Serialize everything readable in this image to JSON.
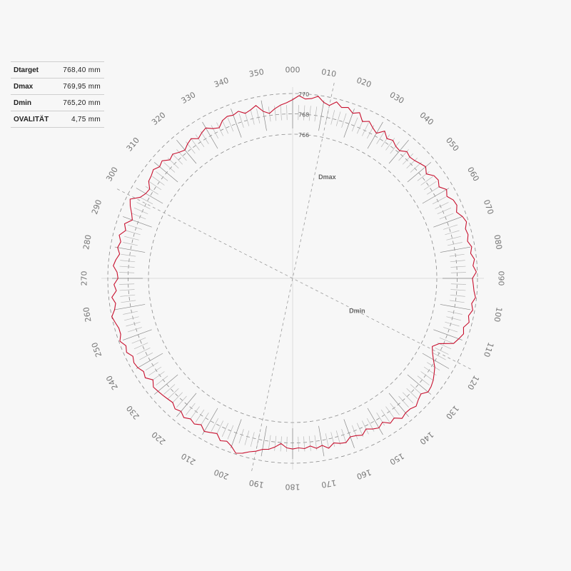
{
  "stats": [
    {
      "label": "Dtarget",
      "value": "768,40 mm"
    },
    {
      "label": "Dmax",
      "value": "769,95 mm"
    },
    {
      "label": "Dmin",
      "value": "765,20 mm"
    },
    {
      "label": "OVALITÄT",
      "value": "4,75 mm"
    }
  ],
  "colors": {
    "trace": "#c8102e",
    "grid": "#999999",
    "text": "#777777"
  },
  "chart_data": {
    "type": "polar-line",
    "angle_labels": [
      "000",
      "010",
      "020",
      "030",
      "040",
      "050",
      "060",
      "070",
      "080",
      "090",
      "100",
      "110",
      "120",
      "130",
      "140",
      "150",
      "160",
      "170",
      "180",
      "190",
      "200",
      "210",
      "220",
      "230",
      "240",
      "250",
      "260",
      "270",
      "280",
      "290",
      "300",
      "310",
      "320",
      "330",
      "340",
      "350"
    ],
    "rings": [
      {
        "value": 770,
        "label": "770"
      },
      {
        "value": 768,
        "label": "768"
      },
      {
        "value": 766,
        "label": "766"
      }
    ],
    "radial_range": [
      766,
      770
    ],
    "annotations": [
      {
        "label": "Dmax",
        "angle": 12
      },
      {
        "label": "Dmin",
        "angle": 117
      }
    ],
    "series": [
      {
        "angle_step": 2,
        "values": [
          769.4,
          769.8,
          769.5,
          769.6,
          769.9,
          769.4,
          769.2,
          769.7,
          769.3,
          769.5,
          769.1,
          769.4,
          768.7,
          769.0,
          768.6,
          768.3,
          768.9,
          768.4,
          768.6,
          768.3,
          768.2,
          768.6,
          768.4,
          768.5,
          768.7,
          768.9,
          768.5,
          769.0,
          769.1,
          768.8,
          769.3,
          769.0,
          769.4,
          769.5,
          769.2,
          769.6,
          769.8,
          769.5,
          769.6,
          769.4,
          769.7,
          769.5,
          769.8,
          769.6,
          769.9,
          769.5,
          769.6,
          769.7,
          769.9,
          769.6,
          769.8,
          769.5,
          769.7,
          769.3,
          769.5,
          769.2,
          768.9,
          767.6,
          767.1,
          767.4,
          767.8,
          768.3,
          768.6,
          768.9,
          769.1,
          769.2,
          768.8,
          769.0,
          769.3,
          769.1,
          769.1,
          769.3,
          768.8,
          769.0,
          768.5,
          768.8,
          768.6,
          768.3,
          768.7,
          768.5,
          768.4,
          768.8,
          768.7,
          768.5,
          768.9,
          768.5,
          768.7,
          768.4,
          768.6,
          768.5,
          768.6,
          768.5,
          768.1,
          768.5,
          768.8,
          768.9,
          769.2,
          769.4,
          769.7,
          769.9,
          769.4,
          769.1,
          769.3,
          768.8,
          769.0,
          769.2,
          768.8,
          769.1,
          768.9,
          769.2,
          768.9,
          769.1,
          768.8,
          768.9,
          769.0,
          769.1,
          769.2,
          768.8,
          769.3,
          769.1,
          769.4,
          769.5,
          769.3,
          769.7,
          769.5,
          769.9,
          769.6,
          769.6,
          769.8,
          770.0,
          769.6,
          769.4,
          769.7,
          769.2,
          769.4,
          769.0,
          769.1,
          769.5,
          769.3,
          769.0,
          769.3,
          769.1,
          769.4,
          768.9,
          769.2,
          768.6,
          768.9,
          769.3,
          769.6,
          768.8,
          768.5,
          768.4,
          768.9,
          769.0,
          769.2,
          768.9,
          769.1,
          768.6,
          768.8,
          768.5,
          768.3,
          768.6,
          768.8,
          768.4,
          768.7,
          768.9,
          768.5,
          768.3,
          768.8,
          769.0,
          768.9,
          769.1,
          768.7,
          768.9,
          769.2,
          768.5,
          768.2,
          768.6,
          768.9,
          769.1
        ]
      }
    ]
  }
}
